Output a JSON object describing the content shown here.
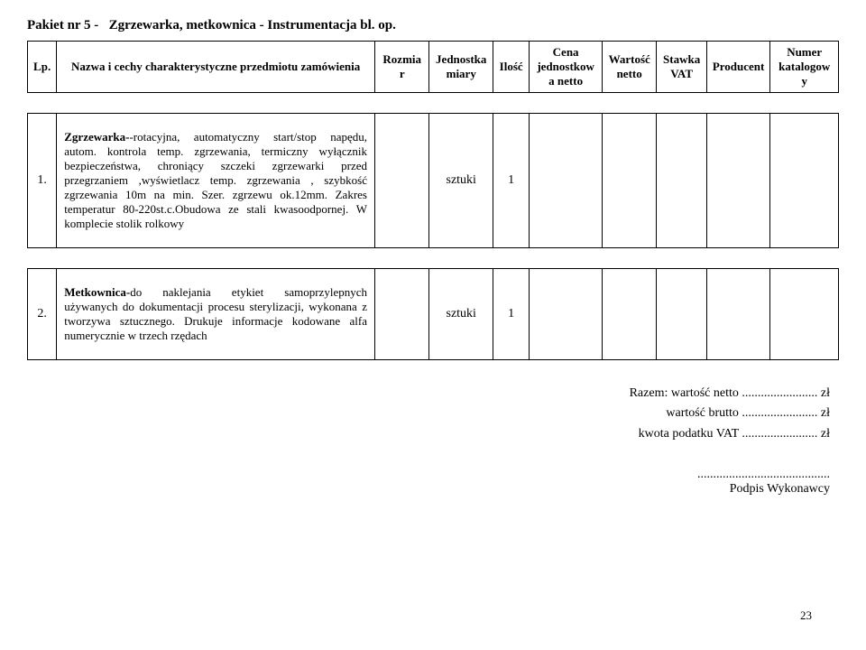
{
  "pkg_title_prefix": "Pakiet nr 5 - ",
  "pkg_title_main": "Zgrzewarka, metkownica - Instrumentacja bl. op.",
  "headers": {
    "lp": "Lp.",
    "name": "Nazwa i cechy charakterystyczne przedmiotu zamówienia",
    "rozmiar": "Rozmiar",
    "jednostka": "Jednostka miary",
    "ilosc": "Ilość",
    "cena": "Cena jednostkowa netto",
    "wartosc": "Wartość netto",
    "stawka": "Stawka VAT",
    "producent": "Producent",
    "numer": "Numer katalogowy"
  },
  "rows": [
    {
      "lp": "1.",
      "bold": "Zgrzewarka-",
      "rest": "-rotacyjna, automatyczny start/stop napędu, autom. kontrola temp. zgrzewania, termiczny wyłącznik bezpieczeństwa, chroniący szczeki zgrzewarki przed przegrzaniem ,wyświetlacz temp. zgrzewania , szybkość zgrzewania 10m na min. Szer. zgrzewu ok.12mm. Zakres temperatur 80-220st.c.Obudowa ze stali kwasoodpornej. W komplecie stolik rolkowy",
      "jednostka": "sztuki",
      "ilosc": "1"
    },
    {
      "lp": "2.",
      "bold": "Metkownica-",
      "rest": "do naklejania etykiet samoprzylepnych używanych do dokumentacji procesu sterylizacji, wykonana z tworzywa sztucznego. Drukuje informacje kodowane alfa numerycznie w trzech rzędach",
      "jednostka": "sztuki",
      "ilosc": "1"
    }
  ],
  "totals": {
    "line1": "Razem: wartość netto ........................ zł",
    "line2": "wartość brutto ........................ zł",
    "line3": "kwota podatku VAT ........................ zł"
  },
  "signature_dots": "..........................................",
  "signature_label": "Podpis Wykonawcy",
  "page_num": "23"
}
